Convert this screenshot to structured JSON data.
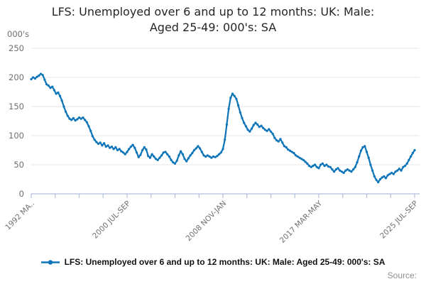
{
  "header": {
    "title": "LFS: Unemployed over 6 and up to 12 months: UK: Male: Aged 25-49: 000's: SA"
  },
  "colors": {
    "line": "#0d74b8",
    "grid": "#e4e4e4",
    "axis": "#b4bfd9",
    "tick_text": "#6f6f6f",
    "title_text": "#262626",
    "source_text": "#8f8f8f"
  },
  "chart_data": {
    "type": "line",
    "title": "LFS: Unemployed over 6 and up to 12 months: UK: Male: Aged 25-49: 000's: SA",
    "ylabel": "000's",
    "xlabel": "",
    "grid": true,
    "legend_position": "bottom",
    "ylim": [
      0,
      250
    ],
    "y_ticks": [
      0,
      50,
      100,
      150,
      200,
      250
    ],
    "xlim": [
      1992.333,
      2025.667
    ],
    "x_tick_count": 17,
    "x_tick_labels": [
      {
        "index": 0,
        "label": "1992 MA.."
      },
      {
        "index": 4,
        "label": "2000 JUL-SEP"
      },
      {
        "index": 8,
        "label": "2008 NOV-JAN"
      },
      {
        "index": 12,
        "label": "2017 MAR-MAY"
      },
      {
        "index": 16,
        "label": "2025 JUL-SEP"
      }
    ],
    "series": [
      {
        "name": "LFS: Unemployed over 6 and up to 12 months: UK: Male: Aged 25-49: 000's: SA",
        "color": "#0d74b8",
        "x_start": 1992.333,
        "x_step_years": 0.166667,
        "values": [
          197,
          200,
          198,
          201,
          203,
          206,
          204,
          196,
          188,
          186,
          182,
          184,
          178,
          172,
          174,
          168,
          160,
          150,
          141,
          134,
          129,
          127,
          130,
          126,
          128,
          131,
          129,
          131,
          127,
          123,
          116,
          108,
          99,
          93,
          89,
          86,
          88,
          83,
          87,
          81,
          83,
          79,
          81,
          77,
          80,
          75,
          77,
          73,
          71,
          68,
          72,
          77,
          81,
          84,
          79,
          71,
          63,
          67,
          75,
          80,
          76,
          65,
          62,
          68,
          64,
          60,
          58,
          62,
          66,
          71,
          72,
          68,
          64,
          58,
          54,
          52,
          57,
          66,
          73,
          68,
          60,
          56,
          61,
          66,
          70,
          75,
          78,
          82,
          78,
          72,
          66,
          64,
          66,
          64,
          62,
          64,
          63,
          65,
          68,
          71,
          77,
          93,
          119,
          146,
          165,
          172,
          168,
          163,
          152,
          140,
          130,
          122,
          116,
          110,
          107,
          112,
          118,
          122,
          119,
          115,
          117,
          113,
          110,
          108,
          111,
          107,
          103,
          96,
          92,
          90,
          94,
          88,
          82,
          80,
          76,
          74,
          72,
          70,
          66,
          64,
          62,
          60,
          58,
          55,
          52,
          48,
          46,
          48,
          50,
          46,
          44,
          50,
          52,
          48,
          50,
          47,
          46,
          42,
          38,
          42,
          44,
          40,
          38,
          36,
          40,
          42,
          40,
          38,
          42,
          46,
          54,
          64,
          74,
          80,
          82,
          72,
          62,
          50,
          40,
          30,
          24,
          20,
          25,
          28,
          30,
          27,
          32,
          34,
          36,
          34,
          38,
          40,
          43,
          40,
          46,
          48,
          52,
          58,
          64,
          70,
          75
        ]
      }
    ]
  },
  "legend": {
    "label": "LFS: Unemployed over 6 and up to 12 months: UK: Male: Aged 25-49: 000's: SA"
  },
  "footer": {
    "source_label": "Source:"
  }
}
